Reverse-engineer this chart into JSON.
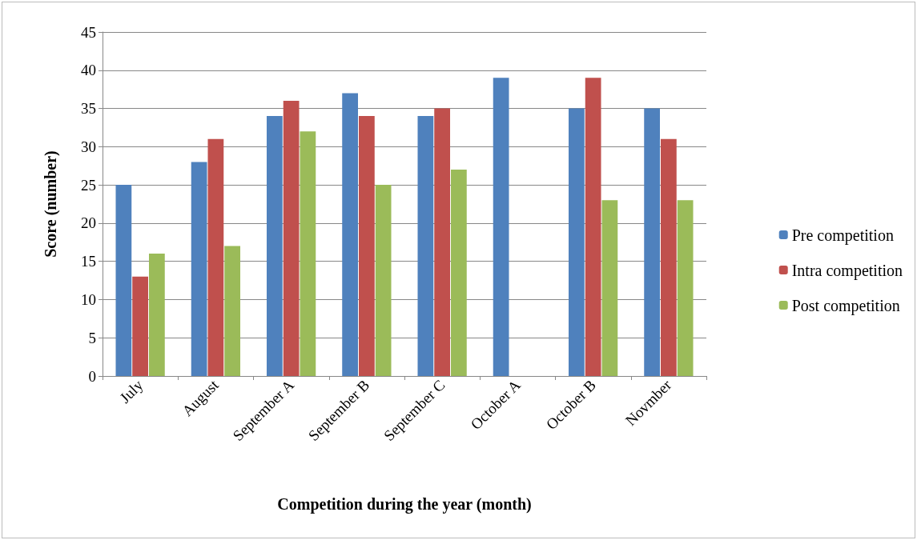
{
  "chart_data": {
    "type": "bar",
    "xlabel": "Competition during the year (month)",
    "ylabel": "Score (number)",
    "categories": [
      "July",
      "August",
      "September A",
      "September B",
      "September C",
      "October A",
      "October B",
      "Novmber"
    ],
    "series": [
      {
        "name": "Pre competition",
        "color": "#4f81bd",
        "values": [
          25,
          28,
          34,
          37,
          34,
          39,
          35,
          35
        ]
      },
      {
        "name": "Intra competition",
        "color": "#c0504d",
        "values": [
          13,
          31,
          36,
          34,
          35,
          null,
          39,
          31
        ]
      },
      {
        "name": "Post competition",
        "color": "#9bbb59",
        "values": [
          16,
          17,
          32,
          25,
          27,
          null,
          23,
          23
        ]
      }
    ],
    "ylim": [
      0,
      45
    ],
    "yticks": [
      0,
      5,
      10,
      15,
      20,
      25,
      30,
      35,
      40,
      45
    ],
    "grid": "y",
    "legend": "right"
  }
}
